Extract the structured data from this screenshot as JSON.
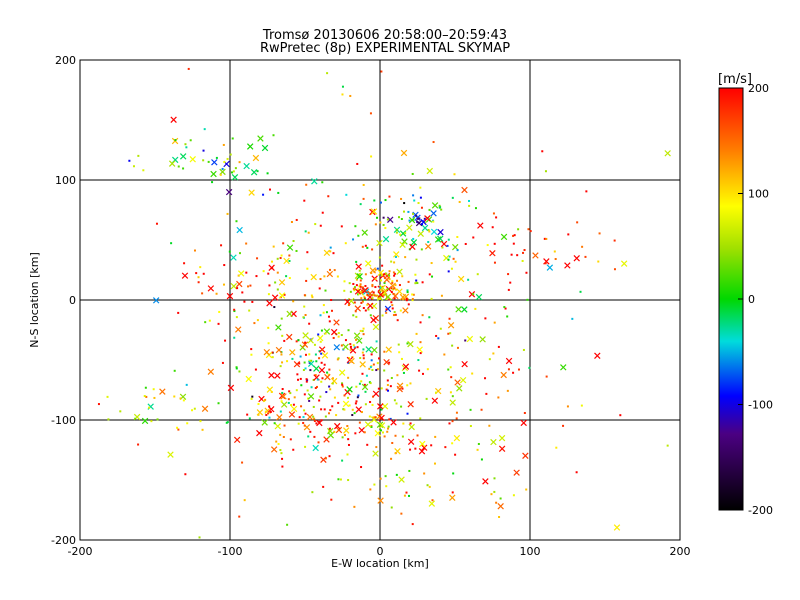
{
  "chart_data": {
    "type": "scatter",
    "title": "Tromsø 20130606 20:58:00–20:59:43",
    "subtitle": "RwPretec (8p) EXPERIMENTAL SKYMAP",
    "xlabel": "E-W location [km]",
    "ylabel": "N-S location [km]",
    "xlim": [
      -200,
      200
    ],
    "ylim": [
      -200,
      200
    ],
    "x_ticks": [
      -200,
      -100,
      0,
      100,
      200
    ],
    "y_ticks": [
      -200,
      -100,
      0,
      100,
      200
    ],
    "grid": true,
    "colorbar": {
      "label": "[m/s]",
      "range": [
        -200,
        200
      ],
      "ticks": [
        200,
        100,
        0,
        -100,
        -200
      ]
    },
    "markers": {
      "small": "dot",
      "large": "x"
    },
    "clusters": [
      {
        "x": 0,
        "y": 8,
        "sx": 12,
        "sy": 10,
        "n": 130,
        "vmean": 130,
        "vsd": 80
      },
      {
        "x": 25,
        "y": 55,
        "sx": 20,
        "sy": 18,
        "n": 90,
        "vmean": 20,
        "vsd": 60
      },
      {
        "x": 28,
        "y": 65,
        "sx": 3,
        "sy": 3,
        "n": 10,
        "vmean": -110,
        "vsd": 20
      },
      {
        "x": -25,
        "y": -40,
        "sx": 20,
        "sy": 20,
        "n": 110,
        "vmean": 60,
        "vsd": 90
      },
      {
        "x": -35,
        "y": -90,
        "sx": 35,
        "sy": 25,
        "n": 220,
        "vmean": 110,
        "vsd": 90
      },
      {
        "x": 40,
        "y": -90,
        "sx": 45,
        "sy": 35,
        "n": 90,
        "vmean": 150,
        "vsd": 70
      },
      {
        "x": -110,
        "y": 115,
        "sx": 25,
        "sy": 12,
        "n": 45,
        "vmean": 10,
        "vsd": 60
      },
      {
        "x": -140,
        "y": -90,
        "sx": 30,
        "sy": 15,
        "n": 35,
        "vmean": 60,
        "vsd": 50
      },
      {
        "x": 110,
        "y": 50,
        "sx": 30,
        "sy": 20,
        "n": 35,
        "vmean": 180,
        "vsd": 40
      },
      {
        "x": -60,
        "y": 20,
        "sx": 40,
        "sy": 30,
        "n": 90,
        "vmean": 150,
        "vsd": 80
      },
      {
        "x": 0,
        "y": 0,
        "sx": 70,
        "sy": 80,
        "n": 230,
        "vmean": 110,
        "vsd": 100
      },
      {
        "x": 30,
        "y": -160,
        "sx": 40,
        "sy": 20,
        "n": 35,
        "vmean": 80,
        "vsd": 80
      }
    ]
  }
}
